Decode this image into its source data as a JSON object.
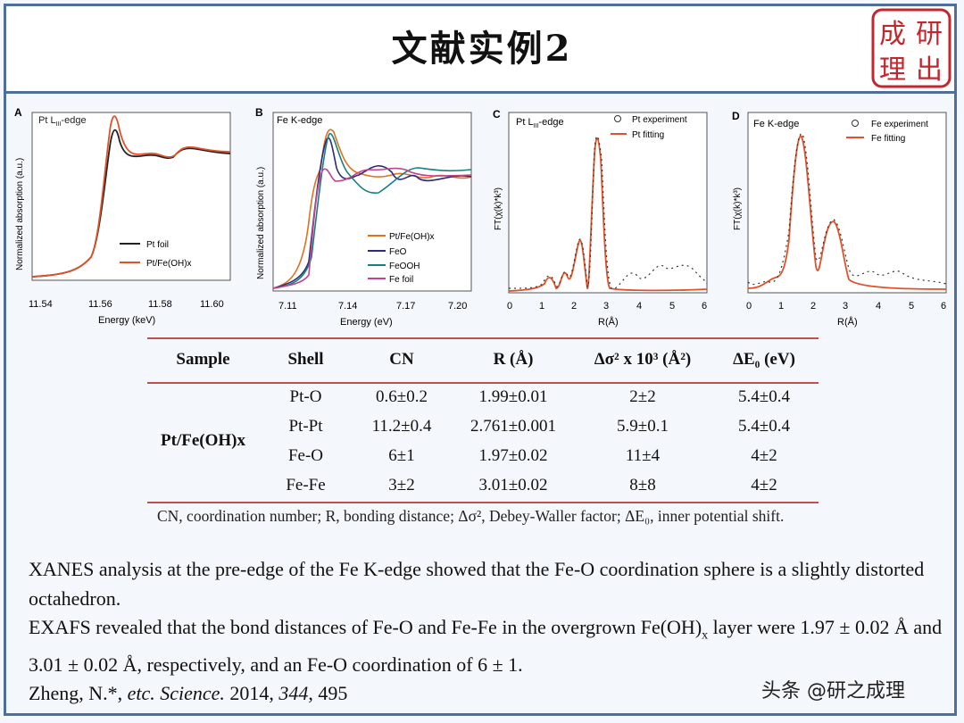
{
  "header": {
    "title": "文献实例2"
  },
  "logo": {
    "text": "成研\n理出",
    "color": "#c1272d"
  },
  "panels": [
    {
      "letter": "A",
      "edge": "Pt L",
      "edge_sub": "III",
      "edge_suffix": "-edge",
      "ylabel": "Normalized absorption (a.u.)",
      "xlabel": "Energy (keV)",
      "xticks": [
        "11.54",
        "11.56",
        "11.58",
        "11.60"
      ],
      "legend": [
        "Pt foil",
        "Pt/Fe(OH)x"
      ],
      "colors": [
        "#222222",
        "#e0522a"
      ]
    },
    {
      "letter": "B",
      "edge": "Fe K-edge",
      "edge_sub": "",
      "edge_suffix": "",
      "ylabel": "Normalized absorption (a.u.)",
      "xlabel": "Energy (eV)",
      "xticks": [
        "7.11",
        "7.14",
        "7.17",
        "7.20"
      ],
      "legend": [
        "Pt/Fe(OH)x",
        "FeO",
        "FeOOH",
        "Fe foil"
      ],
      "colors": [
        "#e0701e",
        "#2e2a7a",
        "#17807e",
        "#c2448f"
      ]
    },
    {
      "letter": "C",
      "edge": "Pt L",
      "edge_sub": "III",
      "edge_suffix": "-edge",
      "ylabel": "FT(χ(k)*k³)",
      "xlabel": "R(Å)",
      "xticks": [
        "0",
        "1",
        "2",
        "3",
        "4",
        "5",
        "6"
      ],
      "legend": [
        "Pt experiment",
        "Pt fitting"
      ],
      "colors": [
        "#333333",
        "#e0522a"
      ]
    },
    {
      "letter": "D",
      "edge": "Fe K-edge",
      "edge_sub": "",
      "edge_suffix": "",
      "ylabel": "FT(χ(k)*k³)",
      "xlabel": "R(Å)",
      "xticks": [
        "0",
        "1",
        "2",
        "3",
        "4",
        "5",
        "6"
      ],
      "legend": [
        "Fe experiment",
        "Fe fitting"
      ],
      "colors": [
        "#333333",
        "#e0522a"
      ]
    }
  ],
  "table": {
    "headers": [
      "Sample",
      "Shell",
      "CN",
      "R (Å)",
      "Δσ² x 10³ (Å²)",
      "ΔE₀ (eV)"
    ],
    "sample": "Pt/Fe(OH)x",
    "rows": [
      [
        "Pt-O",
        "0.6±0.2",
        "1.99±0.01",
        "2±2",
        "5.4±0.4"
      ],
      [
        "Pt-Pt",
        "11.2±0.4",
        "2.761±0.001",
        "5.9±0.1",
        "5.4±0.4"
      ],
      [
        "Fe-O",
        "6±1",
        "1.97±0.02",
        "11±4",
        "4±2"
      ],
      [
        "Fe-Fe",
        "3±2",
        "3.01±0.02",
        "8±8",
        "4±2"
      ]
    ],
    "caption": "CN, coordination number; R, bonding distance; Δσ², Debey-Waller factor; ΔE₀, inner potential shift."
  },
  "body": {
    "para1": "XANES analysis at the pre-edge of the Fe K-edge showed that the Fe-O coordination sphere is a slightly distorted octahedron.",
    "para2_a": "EXAFS revealed that the bond distances of Fe-O and Fe-Fe in the overgrown Fe(OH)",
    "para2_sub": "x",
    "para2_b": " layer were 1.97 ± 0.02 Å and 3.01 ± 0.02 Å, respectively, and an Fe-O coordination of 6 ± 1."
  },
  "citation": {
    "authors": "Zheng, N.*, ",
    "etc": "etc.",
    "journal": " Science.",
    "year": " 2014, ",
    "volume": "344",
    "pages": ", 495"
  },
  "watermark": "头条 @研之成理"
}
